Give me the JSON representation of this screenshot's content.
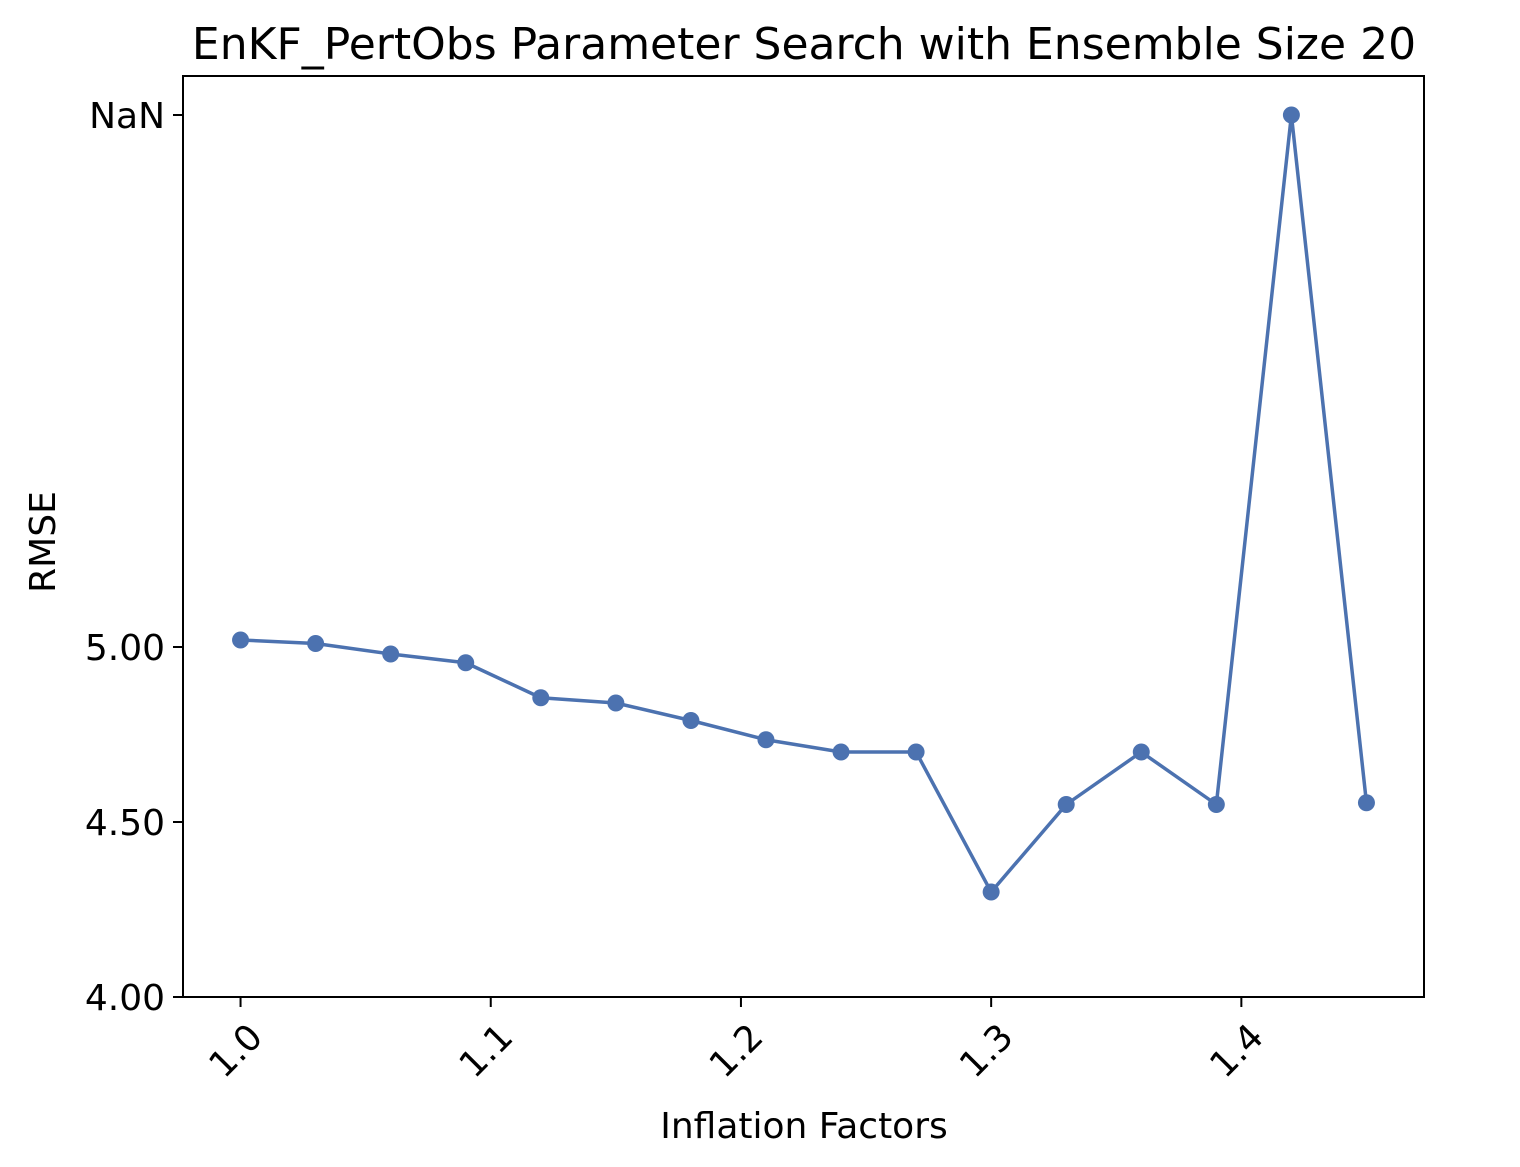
{
  "chart_data": {
    "type": "line",
    "title": "EnKF_PertObs Parameter Search with Ensemble Size 20",
    "xlabel": "Inflation Factors",
    "ylabel": "RMSE",
    "x": [
      1.0,
      1.03,
      1.06,
      1.09,
      1.12,
      1.15,
      1.18,
      1.21,
      1.24,
      1.27,
      1.3,
      1.33,
      1.36,
      1.39,
      1.42,
      1.45
    ],
    "series": [
      {
        "values": [
          5.02,
          5.01,
          4.98,
          4.955,
          4.855,
          4.84,
          4.79,
          4.735,
          4.7,
          4.7,
          4.3,
          4.55,
          4.7,
          4.55,
          "NaN",
          4.555
        ]
      }
    ],
    "xticks": [
      "1.0",
      "1.1",
      "1.2",
      "1.3",
      "1.4"
    ],
    "xtick_values": [
      1.0,
      1.1,
      1.2,
      1.3,
      1.4
    ],
    "yticks": [
      "4.00",
      "4.50",
      "5.00",
      "NaN"
    ],
    "ytick_values": [
      4.0,
      4.5,
      5.0,
      "NaN"
    ],
    "xlim": [
      0.977,
      1.473
    ],
    "ylim": [
      4.0,
      6.52
    ],
    "nan_display_value": 6.52,
    "grid": false,
    "legend": "none",
    "colors": {
      "line": "#4c72b0",
      "marker": "#4c72b0",
      "axes": "#000000"
    }
  }
}
